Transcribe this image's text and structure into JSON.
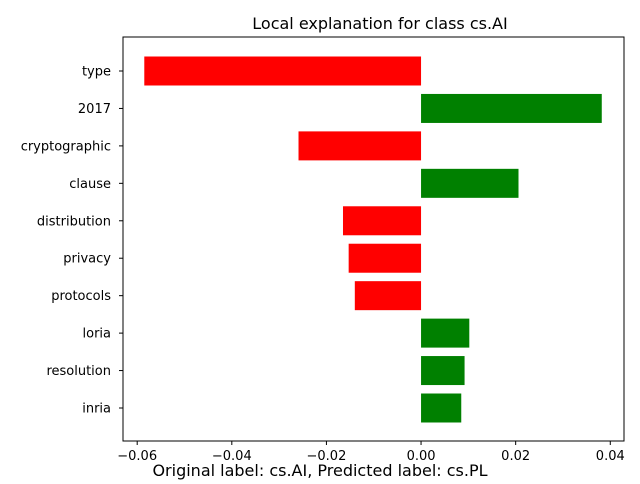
{
  "chart_data": {
    "type": "bar",
    "orientation": "horizontal",
    "title": "Local explanation for class cs.AI",
    "caption": "Original label: cs.AI, Predicted label: cs.PL",
    "categories": [
      "type",
      "2017",
      "cryptographic",
      "clause",
      "distribution",
      "privacy",
      "protocols",
      "loria",
      "resolution",
      "inria"
    ],
    "values": [
      -0.0585,
      0.0382,
      -0.0259,
      0.0206,
      -0.0165,
      -0.0153,
      -0.014,
      0.0102,
      0.0092,
      0.0085
    ],
    "xlim": [
      -0.063,
      0.0429
    ],
    "xticks": [
      -0.06,
      -0.04,
      -0.02,
      0.0,
      0.02,
      0.04
    ],
    "xtick_labels": [
      "−0.06",
      "−0.04",
      "−0.02",
      "0.00",
      "0.02",
      "0.04"
    ],
    "grid": false,
    "colors": {
      "negative": "#ff0000",
      "positive": "#008000",
      "axis": "#000000"
    }
  }
}
